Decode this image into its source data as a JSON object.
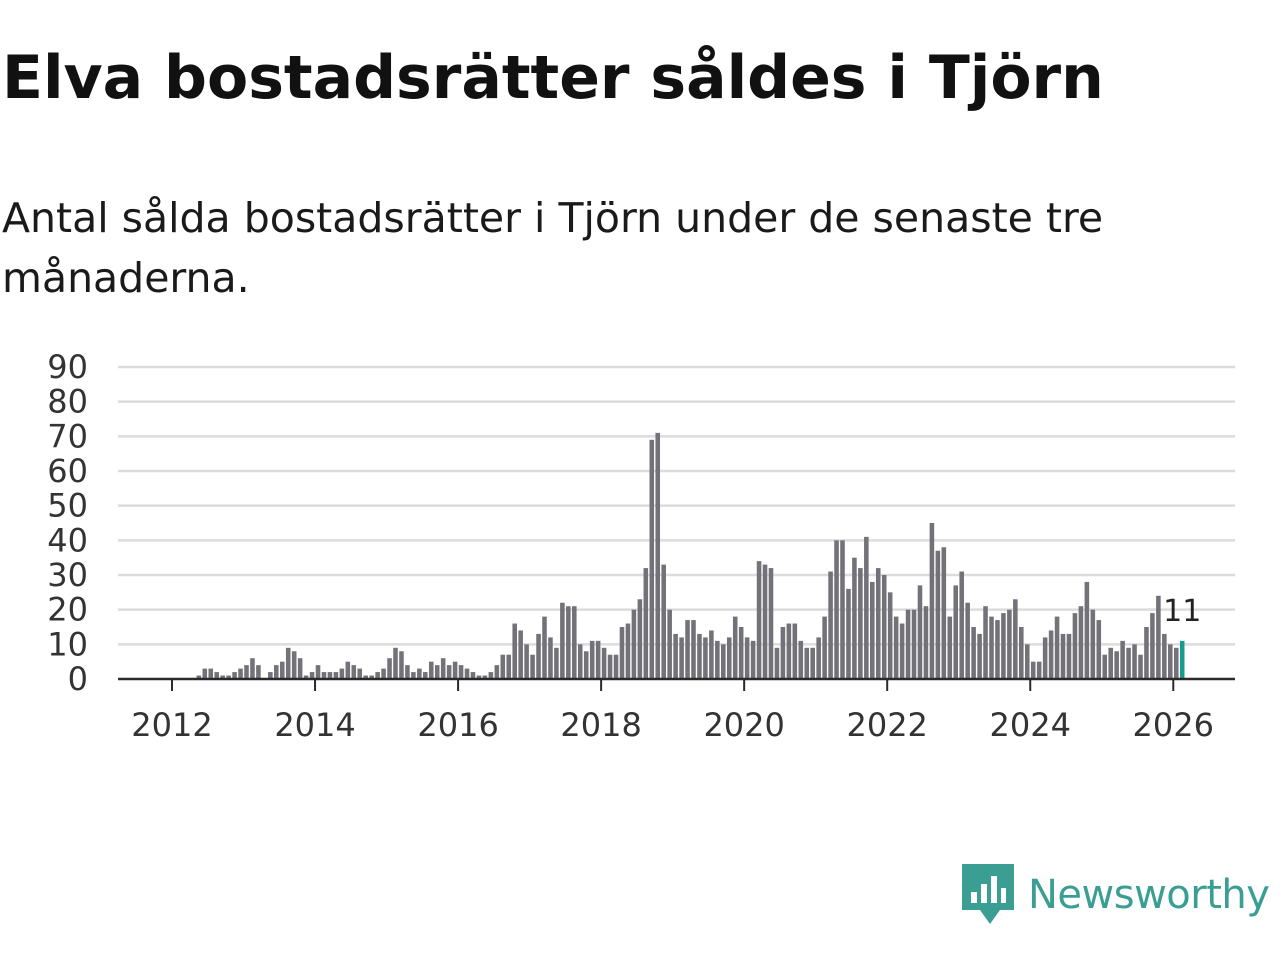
{
  "title": "Elva bostadsrätter såldes i Tjörn",
  "subtitle": "Antal sålda bostadsrätter i Tjörn under de senaste tre månaderna.",
  "brand": {
    "name": "Newsworthy",
    "icon": "newsworthy-logo-icon",
    "color": "#3a9e93"
  },
  "chart_data": {
    "type": "bar",
    "title": "Elva bostadsrätter såldes i Tjörn",
    "xlabel": "",
    "ylabel": "",
    "start": "2011-01",
    "end": "2026-02",
    "ylim": [
      0,
      90
    ],
    "yticks": [
      "0",
      "10",
      "20",
      "30",
      "40",
      "50",
      "60",
      "70",
      "80",
      "90"
    ],
    "xticks": [
      "2012",
      "2014",
      "2016",
      "2018",
      "2020",
      "2022",
      "2024",
      "2026"
    ],
    "grid": true,
    "bar_color": "#737278",
    "highlight_color": "#1a9a8e",
    "highlight_label": "11",
    "values": [
      0,
      0,
      0,
      0,
      0,
      0,
      0,
      0,
      0,
      0,
      0,
      0,
      0,
      0,
      0,
      0,
      1,
      3,
      3,
      2,
      1,
      1,
      2,
      3,
      4,
      6,
      4,
      0,
      2,
      4,
      5,
      9,
      8,
      6,
      1,
      2,
      4,
      2,
      2,
      2,
      3,
      5,
      4,
      3,
      1,
      1,
      2,
      3,
      6,
      9,
      8,
      4,
      2,
      3,
      2,
      5,
      4,
      6,
      4,
      5,
      4,
      3,
      2,
      1,
      1,
      2,
      4,
      7,
      7,
      16,
      14,
      10,
      7,
      13,
      18,
      12,
      9,
      22,
      21,
      21,
      10,
      8,
      11,
      11,
      9,
      7,
      7,
      15,
      16,
      20,
      23,
      32,
      69,
      71,
      33,
      20,
      13,
      12,
      17,
      17,
      13,
      12,
      14,
      11,
      10,
      12,
      18,
      15,
      12,
      11,
      34,
      33,
      32,
      9,
      15,
      16,
      16,
      11,
      9,
      9,
      12,
      18,
      31,
      40,
      40,
      26,
      35,
      32,
      41,
      28,
      32,
      30,
      25,
      18,
      16,
      20,
      20,
      27,
      21,
      45,
      37,
      38,
      18,
      27,
      31,
      22,
      15,
      13,
      21,
      18,
      17,
      19,
      20,
      23,
      15,
      10,
      5,
      5,
      12,
      14,
      18,
      13,
      13,
      19,
      21,
      28,
      20,
      17,
      7,
      9,
      8,
      11,
      9,
      10,
      7,
      15,
      19,
      24,
      13,
      10,
      9,
      11
    ]
  }
}
